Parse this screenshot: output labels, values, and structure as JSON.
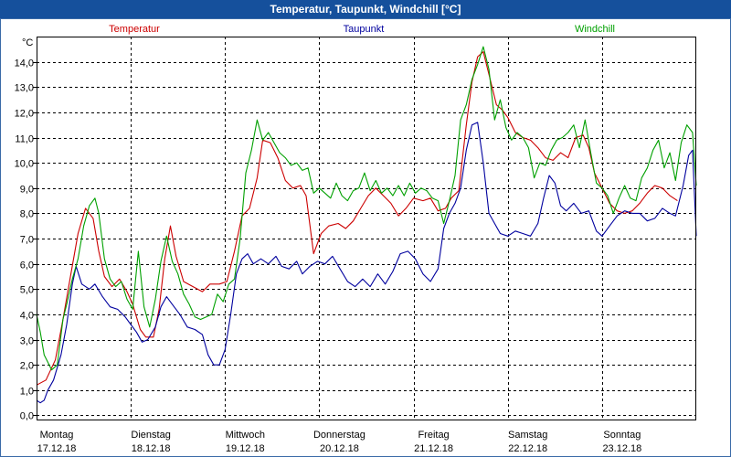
{
  "window": {
    "title": "Temperatur, Taupunkt, Windchill [°C]",
    "title_bar_color": "#15509c",
    "frame_color": "#3a6aa8"
  },
  "chart_data": {
    "type": "line",
    "ylabel": "°C",
    "ylim": [
      -0.2,
      15.0
    ],
    "yticks": [
      "0,0",
      "1,0",
      "2,0",
      "3,0",
      "4,0",
      "5,0",
      "6,0",
      "7,0",
      "8,0",
      "9,0",
      "10,0",
      "11,0",
      "12,0",
      "13,0",
      "14,0"
    ],
    "ytick_values": [
      0,
      1,
      2,
      3,
      4,
      5,
      6,
      7,
      8,
      9,
      10,
      11,
      12,
      13,
      14
    ],
    "xlim": [
      0,
      7
    ],
    "grid": true,
    "x_labels": [
      {
        "day": "Montag",
        "date": "17.12.18"
      },
      {
        "day": "Dienstag",
        "date": "18.12.18"
      },
      {
        "day": "Mittwoch",
        "date": "19.12.18"
      },
      {
        "day": "Donnerstag",
        "date": "20.12.18"
      },
      {
        "day": "Freitag",
        "date": "21.12.18"
      },
      {
        "day": "Samstag",
        "date": "22.12.18"
      },
      {
        "day": "Sonntag",
        "date": "23.12.18"
      }
    ],
    "series": [
      {
        "name": "Temperatur",
        "color": "#cc0000",
        "points": [
          [
            0.0,
            1.2
          ],
          [
            0.1,
            1.4
          ],
          [
            0.2,
            2.2
          ],
          [
            0.28,
            3.8
          ],
          [
            0.36,
            5.5
          ],
          [
            0.44,
            7.2
          ],
          [
            0.52,
            8.2
          ],
          [
            0.6,
            7.8
          ],
          [
            0.66,
            6.5
          ],
          [
            0.72,
            5.5
          ],
          [
            0.8,
            5.1
          ],
          [
            0.88,
            5.4
          ],
          [
            0.96,
            4.9
          ],
          [
            1.02,
            4.4
          ],
          [
            1.1,
            3.4
          ],
          [
            1.16,
            3.1
          ],
          [
            1.24,
            3.1
          ],
          [
            1.3,
            4.2
          ],
          [
            1.36,
            6.2
          ],
          [
            1.42,
            7.5
          ],
          [
            1.48,
            6.3
          ],
          [
            1.56,
            5.3
          ],
          [
            1.66,
            5.1
          ],
          [
            1.76,
            4.9
          ],
          [
            1.84,
            5.2
          ],
          [
            1.94,
            5.2
          ],
          [
            2.02,
            5.3
          ],
          [
            2.1,
            6.5
          ],
          [
            2.18,
            7.9
          ],
          [
            2.26,
            8.2
          ],
          [
            2.34,
            9.4
          ],
          [
            2.4,
            10.9
          ],
          [
            2.48,
            10.8
          ],
          [
            2.56,
            10.2
          ],
          [
            2.64,
            9.3
          ],
          [
            2.72,
            9.0
          ],
          [
            2.8,
            9.1
          ],
          [
            2.86,
            8.7
          ],
          [
            2.94,
            6.4
          ],
          [
            3.02,
            7.2
          ],
          [
            3.1,
            7.5
          ],
          [
            3.2,
            7.6
          ],
          [
            3.28,
            7.4
          ],
          [
            3.36,
            7.7
          ],
          [
            3.44,
            8.2
          ],
          [
            3.52,
            8.7
          ],
          [
            3.6,
            9.0
          ],
          [
            3.68,
            8.7
          ],
          [
            3.76,
            8.4
          ],
          [
            3.84,
            7.9
          ],
          [
            3.92,
            8.2
          ],
          [
            4.0,
            8.6
          ],
          [
            4.1,
            8.5
          ],
          [
            4.18,
            8.6
          ],
          [
            4.26,
            8.1
          ],
          [
            4.34,
            8.2
          ],
          [
            4.4,
            8.6
          ],
          [
            4.48,
            8.9
          ],
          [
            4.56,
            11.5
          ],
          [
            4.62,
            13.2
          ],
          [
            4.68,
            14.2
          ],
          [
            4.74,
            14.4
          ],
          [
            4.8,
            13.5
          ],
          [
            4.88,
            12.3
          ],
          [
            4.94,
            12.1
          ],
          [
            5.0,
            11.8
          ],
          [
            5.08,
            11.2
          ],
          [
            5.16,
            11.0
          ],
          [
            5.24,
            10.9
          ],
          [
            5.32,
            10.6
          ],
          [
            5.4,
            10.2
          ],
          [
            5.48,
            10.1
          ],
          [
            5.56,
            10.4
          ],
          [
            5.64,
            10.2
          ],
          [
            5.72,
            11.0
          ],
          [
            5.8,
            11.1
          ],
          [
            5.86,
            10.6
          ],
          [
            5.92,
            9.6
          ],
          [
            6.0,
            9.0
          ],
          [
            6.08,
            8.4
          ],
          [
            6.16,
            8.1
          ],
          [
            6.24,
            8.0
          ],
          [
            6.32,
            8.1
          ],
          [
            6.4,
            8.4
          ],
          [
            6.48,
            8.8
          ],
          [
            6.56,
            9.1
          ],
          [
            6.64,
            9.0
          ],
          [
            6.72,
            8.7
          ],
          [
            6.8,
            8.5
          ]
        ]
      },
      {
        "name": "Taupunkt",
        "color": "#00009e",
        "points": [
          [
            0.0,
            0.6
          ],
          [
            0.04,
            0.5
          ],
          [
            0.08,
            0.6
          ],
          [
            0.12,
            1.0
          ],
          [
            0.18,
            1.4
          ],
          [
            0.26,
            2.4
          ],
          [
            0.32,
            3.6
          ],
          [
            0.38,
            5.2
          ],
          [
            0.42,
            5.9
          ],
          [
            0.48,
            5.2
          ],
          [
            0.56,
            5.0
          ],
          [
            0.62,
            5.2
          ],
          [
            0.7,
            4.7
          ],
          [
            0.78,
            4.3
          ],
          [
            0.86,
            4.2
          ],
          [
            0.94,
            3.9
          ],
          [
            1.0,
            3.6
          ],
          [
            1.06,
            3.3
          ],
          [
            1.12,
            2.9
          ],
          [
            1.18,
            3.0
          ],
          [
            1.26,
            3.5
          ],
          [
            1.32,
            4.3
          ],
          [
            1.38,
            4.7
          ],
          [
            1.44,
            4.4
          ],
          [
            1.52,
            4.0
          ],
          [
            1.6,
            3.5
          ],
          [
            1.68,
            3.4
          ],
          [
            1.76,
            3.2
          ],
          [
            1.82,
            2.4
          ],
          [
            1.88,
            2.0
          ],
          [
            1.94,
            2.0
          ],
          [
            2.0,
            2.6
          ],
          [
            2.06,
            4.0
          ],
          [
            2.12,
            5.6
          ],
          [
            2.18,
            6.2
          ],
          [
            2.24,
            6.4
          ],
          [
            2.3,
            6.0
          ],
          [
            2.38,
            6.2
          ],
          [
            2.46,
            6.0
          ],
          [
            2.54,
            6.3
          ],
          [
            2.6,
            5.9
          ],
          [
            2.68,
            5.8
          ],
          [
            2.76,
            6.1
          ],
          [
            2.82,
            5.6
          ],
          [
            2.9,
            5.9
          ],
          [
            2.98,
            6.1
          ],
          [
            3.06,
            6.0
          ],
          [
            3.14,
            6.3
          ],
          [
            3.22,
            5.8
          ],
          [
            3.3,
            5.3
          ],
          [
            3.38,
            5.1
          ],
          [
            3.46,
            5.4
          ],
          [
            3.54,
            5.1
          ],
          [
            3.62,
            5.6
          ],
          [
            3.7,
            5.2
          ],
          [
            3.78,
            5.7
          ],
          [
            3.86,
            6.4
          ],
          [
            3.94,
            6.5
          ],
          [
            4.02,
            6.2
          ],
          [
            4.1,
            5.6
          ],
          [
            4.18,
            5.3
          ],
          [
            4.26,
            5.8
          ],
          [
            4.32,
            7.4
          ],
          [
            4.38,
            8.0
          ],
          [
            4.44,
            8.4
          ],
          [
            4.5,
            9.0
          ],
          [
            4.56,
            10.5
          ],
          [
            4.62,
            11.5
          ],
          [
            4.68,
            11.6
          ],
          [
            4.74,
            10.0
          ],
          [
            4.8,
            8.0
          ],
          [
            4.86,
            7.6
          ],
          [
            4.92,
            7.2
          ],
          [
            5.0,
            7.1
          ],
          [
            5.08,
            7.3
          ],
          [
            5.16,
            7.2
          ],
          [
            5.24,
            7.1
          ],
          [
            5.32,
            7.6
          ],
          [
            5.38,
            8.6
          ],
          [
            5.44,
            9.5
          ],
          [
            5.5,
            9.2
          ],
          [
            5.56,
            8.3
          ],
          [
            5.62,
            8.1
          ],
          [
            5.7,
            8.4
          ],
          [
            5.78,
            8.0
          ],
          [
            5.86,
            8.1
          ],
          [
            5.94,
            7.3
          ],
          [
            6.0,
            7.1
          ],
          [
            6.08,
            7.5
          ],
          [
            6.16,
            7.9
          ],
          [
            6.24,
            8.1
          ],
          [
            6.32,
            8.0
          ],
          [
            6.4,
            8.0
          ],
          [
            6.48,
            7.7
          ],
          [
            6.56,
            7.8
          ],
          [
            6.64,
            8.2
          ],
          [
            6.72,
            8.0
          ],
          [
            6.78,
            7.9
          ],
          [
            6.86,
            9.1
          ],
          [
            6.92,
            10.3
          ],
          [
            6.96,
            10.5
          ],
          [
            7.0,
            7.1
          ]
        ]
      },
      {
        "name": "Windchill",
        "color": "#00a000",
        "points": [
          [
            0.0,
            4.0
          ],
          [
            0.04,
            3.3
          ],
          [
            0.08,
            2.4
          ],
          [
            0.12,
            2.1
          ],
          [
            0.16,
            1.8
          ],
          [
            0.22,
            2.0
          ],
          [
            0.28,
            3.8
          ],
          [
            0.32,
            4.4
          ],
          [
            0.38,
            5.4
          ],
          [
            0.44,
            6.2
          ],
          [
            0.5,
            7.5
          ],
          [
            0.56,
            8.3
          ],
          [
            0.62,
            8.6
          ],
          [
            0.66,
            8.0
          ],
          [
            0.72,
            6.2
          ],
          [
            0.78,
            5.4
          ],
          [
            0.84,
            5.1
          ],
          [
            0.9,
            5.3
          ],
          [
            0.96,
            4.6
          ],
          [
            1.02,
            4.2
          ],
          [
            1.08,
            6.5
          ],
          [
            1.14,
            4.3
          ],
          [
            1.2,
            3.5
          ],
          [
            1.26,
            4.6
          ],
          [
            1.32,
            6.1
          ],
          [
            1.38,
            7.1
          ],
          [
            1.44,
            6.1
          ],
          [
            1.5,
            5.6
          ],
          [
            1.56,
            4.8
          ],
          [
            1.62,
            4.4
          ],
          [
            1.68,
            3.9
          ],
          [
            1.74,
            3.8
          ],
          [
            1.8,
            3.9
          ],
          [
            1.86,
            4.0
          ],
          [
            1.92,
            4.8
          ],
          [
            1.98,
            4.5
          ],
          [
            2.04,
            5.2
          ],
          [
            2.1,
            5.4
          ],
          [
            2.16,
            7.0
          ],
          [
            2.22,
            9.6
          ],
          [
            2.28,
            10.5
          ],
          [
            2.34,
            11.7
          ],
          [
            2.4,
            10.9
          ],
          [
            2.46,
            11.2
          ],
          [
            2.52,
            10.8
          ],
          [
            2.58,
            10.4
          ],
          [
            2.64,
            10.2
          ],
          [
            2.7,
            9.9
          ],
          [
            2.76,
            10.0
          ],
          [
            2.82,
            9.7
          ],
          [
            2.88,
            9.8
          ],
          [
            2.94,
            8.8
          ],
          [
            3.0,
            9.0
          ],
          [
            3.06,
            8.8
          ],
          [
            3.12,
            8.6
          ],
          [
            3.18,
            9.2
          ],
          [
            3.24,
            8.7
          ],
          [
            3.3,
            8.5
          ],
          [
            3.36,
            8.9
          ],
          [
            3.42,
            9.0
          ],
          [
            3.48,
            9.6
          ],
          [
            3.54,
            8.9
          ],
          [
            3.6,
            9.3
          ],
          [
            3.66,
            8.8
          ],
          [
            3.72,
            9.0
          ],
          [
            3.78,
            8.7
          ],
          [
            3.84,
            9.1
          ],
          [
            3.9,
            8.7
          ],
          [
            3.96,
            9.2
          ],
          [
            4.02,
            8.8
          ],
          [
            4.08,
            9.0
          ],
          [
            4.14,
            8.9
          ],
          [
            4.2,
            8.6
          ],
          [
            4.26,
            8.5
          ],
          [
            4.32,
            7.6
          ],
          [
            4.38,
            8.5
          ],
          [
            4.44,
            9.5
          ],
          [
            4.5,
            11.7
          ],
          [
            4.56,
            12.3
          ],
          [
            4.62,
            13.3
          ],
          [
            4.68,
            13.9
          ],
          [
            4.74,
            14.6
          ],
          [
            4.8,
            13.7
          ],
          [
            4.86,
            11.7
          ],
          [
            4.92,
            12.5
          ],
          [
            4.98,
            11.4
          ],
          [
            5.04,
            10.9
          ],
          [
            5.1,
            11.2
          ],
          [
            5.16,
            11.0
          ],
          [
            5.22,
            10.6
          ],
          [
            5.28,
            9.4
          ],
          [
            5.34,
            10.0
          ],
          [
            5.4,
            9.9
          ],
          [
            5.46,
            10.5
          ],
          [
            5.52,
            10.9
          ],
          [
            5.58,
            11.0
          ],
          [
            5.64,
            11.2
          ],
          [
            5.7,
            11.5
          ],
          [
            5.76,
            10.6
          ],
          [
            5.82,
            11.7
          ],
          [
            5.88,
            10.4
          ],
          [
            5.94,
            9.2
          ],
          [
            6.0,
            9.0
          ],
          [
            6.06,
            8.7
          ],
          [
            6.12,
            8.0
          ],
          [
            6.18,
            8.6
          ],
          [
            6.24,
            9.1
          ],
          [
            6.3,
            8.6
          ],
          [
            6.36,
            8.5
          ],
          [
            6.42,
            9.4
          ],
          [
            6.48,
            9.8
          ],
          [
            6.54,
            10.5
          ],
          [
            6.6,
            10.9
          ],
          [
            6.66,
            9.8
          ],
          [
            6.72,
            10.4
          ],
          [
            6.78,
            9.3
          ],
          [
            6.84,
            10.8
          ],
          [
            6.9,
            11.5
          ],
          [
            6.96,
            11.2
          ],
          [
            7.0,
            9.1
          ]
        ]
      }
    ]
  }
}
